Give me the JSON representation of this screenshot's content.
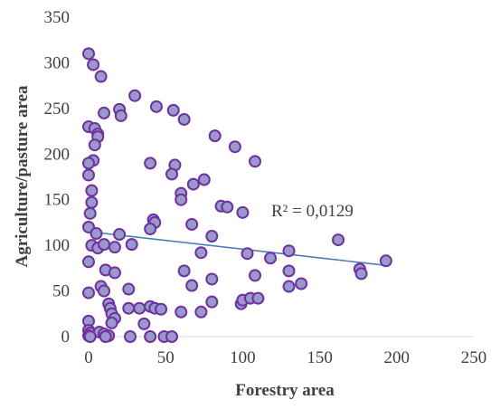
{
  "chart_data": {
    "type": "scatter",
    "xlabel": "Forestry area",
    "ylabel": "Agriculture/pasture area",
    "xlim": [
      0,
      250
    ],
    "ylim": [
      0,
      350
    ],
    "x_ticks": [
      0,
      50,
      100,
      150,
      200,
      250
    ],
    "y_ticks": [
      0,
      50,
      100,
      150,
      200,
      250,
      300,
      350
    ],
    "grid": false,
    "legend": "none",
    "marker_fill": "#9999cc",
    "marker_stroke": "#7030a0",
    "trendline": {
      "type": "linear",
      "color": "#4a7ebb",
      "r2_label": "R² = 0,0129",
      "x": [
        0,
        193
      ],
      "y": [
        115,
        78
      ]
    },
    "points": [
      [
        0,
        310
      ],
      [
        3,
        298
      ],
      [
        8,
        285
      ],
      [
        0,
        230
      ],
      [
        4,
        228
      ],
      [
        6,
        222
      ],
      [
        6,
        219
      ],
      [
        10,
        245
      ],
      [
        4,
        210
      ],
      [
        20,
        249
      ],
      [
        21,
        242
      ],
      [
        30,
        264
      ],
      [
        44,
        252
      ],
      [
        55,
        248
      ],
      [
        62,
        238
      ],
      [
        82,
        220
      ],
      [
        95,
        208
      ],
      [
        108,
        192
      ],
      [
        40,
        190
      ],
      [
        56,
        188
      ],
      [
        54,
        178
      ],
      [
        75,
        172
      ],
      [
        68,
        167
      ],
      [
        60,
        157
      ],
      [
        60,
        150
      ],
      [
        86,
        143
      ],
      [
        90,
        142
      ],
      [
        100,
        136
      ],
      [
        3,
        193
      ],
      [
        0,
        190
      ],
      [
        0,
        177
      ],
      [
        2,
        160
      ],
      [
        2,
        147
      ],
      [
        1,
        135
      ],
      [
        0,
        120
      ],
      [
        5,
        113
      ],
      [
        20,
        112
      ],
      [
        42,
        128
      ],
      [
        43,
        125
      ],
      [
        40,
        118
      ],
      [
        67,
        123
      ],
      [
        80,
        110
      ],
      [
        2,
        100
      ],
      [
        6,
        97
      ],
      [
        10,
        101
      ],
      [
        17,
        98
      ],
      [
        28,
        101
      ],
      [
        73,
        92
      ],
      [
        103,
        91
      ],
      [
        118,
        86
      ],
      [
        130,
        94
      ],
      [
        162,
        106
      ],
      [
        176,
        74
      ],
      [
        177,
        69
      ],
      [
        193,
        83
      ],
      [
        0,
        82
      ],
      [
        62,
        72
      ],
      [
        108,
        67
      ],
      [
        130,
        72
      ],
      [
        80,
        63
      ],
      [
        11,
        73
      ],
      [
        17,
        70
      ],
      [
        67,
        56
      ],
      [
        130,
        55
      ],
      [
        138,
        58
      ],
      [
        8,
        55
      ],
      [
        10,
        50
      ],
      [
        26,
        52
      ],
      [
        0,
        48
      ],
      [
        80,
        38
      ],
      [
        99,
        36
      ],
      [
        100,
        40
      ],
      [
        105,
        42
      ],
      [
        110,
        42
      ],
      [
        13,
        36
      ],
      [
        14,
        31
      ],
      [
        26,
        31
      ],
      [
        33,
        31
      ],
      [
        40,
        33
      ],
      [
        43,
        31
      ],
      [
        47,
        30
      ],
      [
        60,
        27
      ],
      [
        73,
        27
      ],
      [
        15,
        25
      ],
      [
        17,
        20
      ],
      [
        15,
        15
      ],
      [
        36,
        14
      ],
      [
        0,
        17
      ],
      [
        0,
        7
      ],
      [
        1,
        4
      ],
      [
        7,
        5
      ],
      [
        10,
        3
      ],
      [
        13,
        1
      ],
      [
        0,
        1
      ],
      [
        1,
        0
      ],
      [
        11,
        0
      ],
      [
        27,
        0
      ],
      [
        40,
        0
      ],
      [
        49,
        0
      ],
      [
        54,
        0
      ]
    ]
  }
}
